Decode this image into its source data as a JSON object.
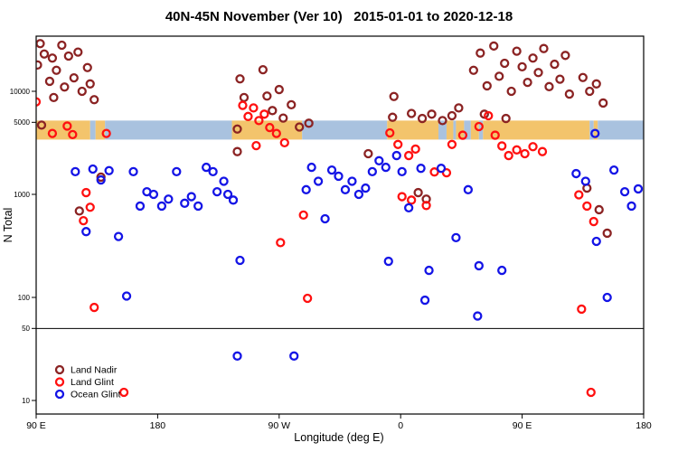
{
  "chart_data": {
    "type": "scatter",
    "title": "40N-45N November (Ver 10)   2015-01-01 to 2020-12-18",
    "xlabel": "Longitude (deg E)",
    "ylabel": "N Total",
    "x_axis": {
      "min": 90,
      "max": 540,
      "ticks": [
        {
          "value": 90,
          "label": "90 E"
        },
        {
          "value": 180,
          "label": "180"
        },
        {
          "value": 270,
          "label": "90 W"
        },
        {
          "value": 360,
          "label": "0"
        },
        {
          "value": 450,
          "label": "90 E"
        },
        {
          "value": 540,
          "label": "180"
        }
      ]
    },
    "y_axis": {
      "scale": "log",
      "min": 8,
      "max": 34000,
      "ticks": [
        {
          "value": 10,
          "label": "10"
        },
        {
          "value": 50,
          "label": "50"
        },
        {
          "value": 100,
          "label": "100"
        },
        {
          "value": 1000,
          "label": "1000"
        },
        {
          "value": 5000,
          "label": "5000"
        },
        {
          "value": 10000,
          "label": "10000"
        }
      ]
    },
    "reference_line_y": 50,
    "map_band": {
      "description": "land/ocean strip for 40N-45N latitude band",
      "n_top": 5200,
      "n_bottom": 3400,
      "land_color": "#f3c46c",
      "ocean_color": "#a9c2df",
      "segments": [
        {
          "from": 90,
          "to": 130,
          "surface": "land"
        },
        {
          "from": 130,
          "to": 134,
          "surface": "ocean"
        },
        {
          "from": 134,
          "to": 141,
          "surface": "land"
        },
        {
          "from": 141,
          "to": 235,
          "surface": "ocean"
        },
        {
          "from": 235,
          "to": 287,
          "surface": "land"
        },
        {
          "from": 287,
          "to": 350,
          "surface": "ocean"
        },
        {
          "from": 350,
          "to": 388,
          "surface": "land"
        },
        {
          "from": 388,
          "to": 394,
          "surface": "ocean"
        },
        {
          "from": 394,
          "to": 399,
          "surface": "land"
        },
        {
          "from": 399,
          "to": 401,
          "surface": "ocean"
        },
        {
          "from": 401,
          "to": 407,
          "surface": "land"
        },
        {
          "from": 407,
          "to": 412,
          "surface": "ocean"
        },
        {
          "from": 412,
          "to": 418,
          "surface": "land"
        },
        {
          "from": 418,
          "to": 421,
          "surface": "ocean"
        },
        {
          "from": 421,
          "to": 500,
          "surface": "land"
        },
        {
          "from": 500,
          "to": 503,
          "surface": "ocean"
        },
        {
          "from": 503,
          "to": 506,
          "surface": "land"
        },
        {
          "from": 506,
          "to": 540,
          "surface": "ocean"
        }
      ]
    },
    "legend": {
      "position": "bottom-left",
      "entries": [
        "Land Nadir",
        "Land Glint",
        "Ocean Glint"
      ]
    },
    "series": [
      {
        "name": "Land Nadir",
        "color": "#8b2323",
        "points": [
          [
            91,
            18000
          ],
          [
            93,
            29000
          ],
          [
            96,
            23000
          ],
          [
            100,
            12500
          ],
          [
            102,
            21000
          ],
          [
            103,
            8700
          ],
          [
            105,
            16000
          ],
          [
            109,
            28000
          ],
          [
            111,
            11000
          ],
          [
            114,
            22000
          ],
          [
            118,
            13500
          ],
          [
            121,
            24000
          ],
          [
            124,
            10000
          ],
          [
            128,
            17000
          ],
          [
            130,
            11800
          ],
          [
            133,
            8300
          ],
          [
            94,
            4700
          ],
          [
            122,
            690
          ],
          [
            138,
            1470
          ],
          [
            239,
            4300
          ],
          [
            241,
            13200
          ],
          [
            244,
            8700
          ],
          [
            258,
            16200
          ],
          [
            261,
            9000
          ],
          [
            265,
            6500
          ],
          [
            270,
            10400
          ],
          [
            273,
            5500
          ],
          [
            279,
            7400
          ],
          [
            285,
            4500
          ],
          [
            292,
            4900
          ],
          [
            239,
            2600
          ],
          [
            336,
            2480
          ],
          [
            354,
            5600
          ],
          [
            355,
            8900
          ],
          [
            368,
            6100
          ],
          [
            376,
            5450
          ],
          [
            383,
            6000
          ],
          [
            391,
            5200
          ],
          [
            398,
            5800
          ],
          [
            403,
            6900
          ],
          [
            373,
            1040
          ],
          [
            379,
            900
          ],
          [
            414,
            16000
          ],
          [
            419,
            23500
          ],
          [
            422,
            6000
          ],
          [
            424,
            11300
          ],
          [
            429,
            27500
          ],
          [
            433,
            14000
          ],
          [
            437,
            18700
          ],
          [
            438,
            5450
          ],
          [
            442,
            10000
          ],
          [
            446,
            24500
          ],
          [
            450,
            17300
          ],
          [
            454,
            12200
          ],
          [
            458,
            21000
          ],
          [
            462,
            15200
          ],
          [
            466,
            26000
          ],
          [
            470,
            11100
          ],
          [
            474,
            18300
          ],
          [
            478,
            13100
          ],
          [
            482,
            22300
          ],
          [
            485,
            9400
          ],
          [
            495,
            13600
          ],
          [
            500,
            10000
          ],
          [
            505,
            11800
          ],
          [
            510,
            7700
          ],
          [
            498,
            1150
          ],
          [
            507,
            710
          ],
          [
            513,
            420
          ]
        ]
      },
      {
        "name": "Land Glint",
        "color": "#ff1010",
        "points": [
          [
            90,
            7900
          ],
          [
            102,
            3900
          ],
          [
            113,
            4600
          ],
          [
            117,
            3800
          ],
          [
            142,
            3900
          ],
          [
            127,
            1040
          ],
          [
            130,
            750
          ],
          [
            125,
            555
          ],
          [
            133,
            80
          ],
          [
            155,
            12
          ],
          [
            243,
            7300
          ],
          [
            247,
            5700
          ],
          [
            251,
            6900
          ],
          [
            255,
            5200
          ],
          [
            259,
            6000
          ],
          [
            263,
            4450
          ],
          [
            268,
            3900
          ],
          [
            253,
            2970
          ],
          [
            274,
            3170
          ],
          [
            271,
            340
          ],
          [
            288,
            630
          ],
          [
            291,
            98
          ],
          [
            352,
            3950
          ],
          [
            358,
            3050
          ],
          [
            361,
            950
          ],
          [
            366,
            2380
          ],
          [
            368,
            880
          ],
          [
            371,
            2750
          ],
          [
            379,
            780
          ],
          [
            385,
            1650
          ],
          [
            394,
            1620
          ],
          [
            398,
            3050
          ],
          [
            406,
            3750
          ],
          [
            418,
            4550
          ],
          [
            425,
            5800
          ],
          [
            430,
            3750
          ],
          [
            435,
            2950
          ],
          [
            440,
            2380
          ],
          [
            446,
            2700
          ],
          [
            452,
            2480
          ],
          [
            458,
            2900
          ],
          [
            465,
            2600
          ],
          [
            492,
            990
          ],
          [
            494,
            77
          ],
          [
            498,
            770
          ],
          [
            503,
            545
          ],
          [
            501,
            12
          ]
        ]
      },
      {
        "name": "Ocean Glint",
        "color": "#1414e6",
        "points": [
          [
            119,
            1660
          ],
          [
            127,
            435
          ],
          [
            132,
            1760
          ],
          [
            138,
            1380
          ],
          [
            144,
            1700
          ],
          [
            151,
            390
          ],
          [
            157,
            103
          ],
          [
            162,
            1660
          ],
          [
            167,
            770
          ],
          [
            172,
            1060
          ],
          [
            177,
            1000
          ],
          [
            183,
            770
          ],
          [
            188,
            900
          ],
          [
            194,
            1660
          ],
          [
            200,
            820
          ],
          [
            205,
            950
          ],
          [
            210,
            770
          ],
          [
            216,
            1830
          ],
          [
            221,
            1660
          ],
          [
            224,
            1060
          ],
          [
            229,
            1340
          ],
          [
            232,
            1000
          ],
          [
            236,
            880
          ],
          [
            239,
            27
          ],
          [
            241,
            229
          ],
          [
            281,
            27
          ],
          [
            290,
            1110
          ],
          [
            294,
            1830
          ],
          [
            299,
            1340
          ],
          [
            304,
            580
          ],
          [
            309,
            1720
          ],
          [
            314,
            1500
          ],
          [
            319,
            1110
          ],
          [
            324,
            1340
          ],
          [
            329,
            1000
          ],
          [
            334,
            1150
          ],
          [
            339,
            1660
          ],
          [
            344,
            2120
          ],
          [
            349,
            1830
          ],
          [
            351,
            224
          ],
          [
            357,
            2380
          ],
          [
            361,
            1660
          ],
          [
            366,
            740
          ],
          [
            375,
            1790
          ],
          [
            378,
            94
          ],
          [
            381,
            183
          ],
          [
            390,
            1790
          ],
          [
            401,
            380
          ],
          [
            410,
            1110
          ],
          [
            417,
            66
          ],
          [
            418,
            203
          ],
          [
            435,
            183
          ],
          [
            490,
            1590
          ],
          [
            497,
            1340
          ],
          [
            504,
            3900
          ],
          [
            505,
            350
          ],
          [
            513,
            100
          ],
          [
            518,
            1720
          ],
          [
            526,
            1060
          ],
          [
            531,
            770
          ],
          [
            536,
            1130
          ]
        ]
      }
    ]
  }
}
